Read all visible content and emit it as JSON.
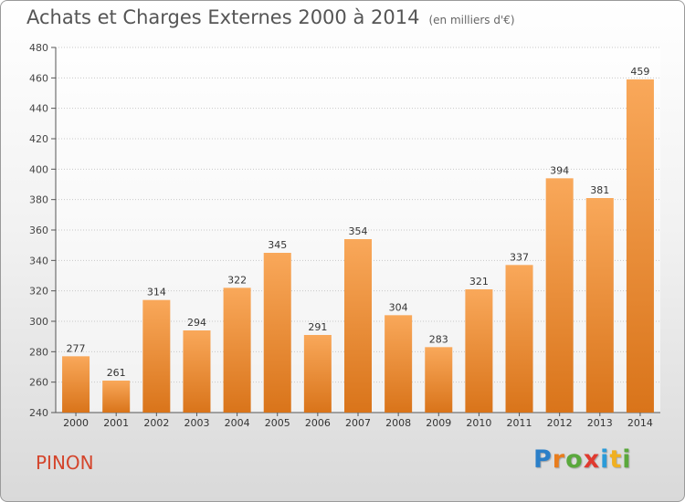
{
  "header": {
    "title": "Achats et Charges Externes 2000 à 2014",
    "subtitle": "(en milliers d'€)"
  },
  "footer": {
    "commune": "PINON",
    "logo_text": "Proxiti",
    "logo_letters": [
      {
        "ch": "P",
        "color": "#2b7fc8"
      },
      {
        "ch": "r",
        "color": "#e87d1e"
      },
      {
        "ch": "o",
        "color": "#5aa83c"
      },
      {
        "ch": "x",
        "color": "#e03a2f"
      },
      {
        "ch": "i",
        "color": "#2b9bd8"
      },
      {
        "ch": "t",
        "color": "#f0b020"
      },
      {
        "ch": "i",
        "color": "#5aa83c"
      }
    ]
  },
  "colors": {
    "bar_light": "#f9a85a",
    "bar_dark": "#d9741a",
    "commune": "#d4452c"
  },
  "chart_data": {
    "type": "bar",
    "categories": [
      "2000",
      "2001",
      "2002",
      "2003",
      "2004",
      "2005",
      "2006",
      "2007",
      "2008",
      "2009",
      "2010",
      "2011",
      "2012",
      "2013",
      "2014"
    ],
    "values": [
      277,
      261,
      314,
      294,
      322,
      345,
      291,
      354,
      304,
      283,
      321,
      337,
      394,
      381,
      459
    ],
    "ylim": [
      240,
      480
    ],
    "yticks": [
      240,
      260,
      280,
      300,
      320,
      340,
      360,
      380,
      400,
      420,
      440,
      460,
      480
    ],
    "grid": true,
    "data_labels": true
  }
}
